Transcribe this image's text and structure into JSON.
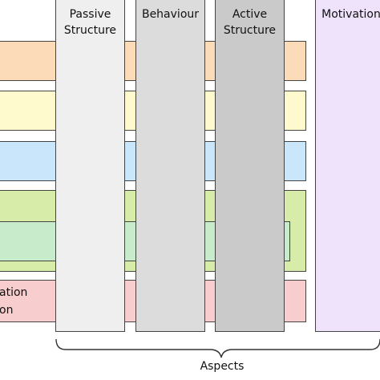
{
  "columns": [
    {
      "label": "Passive\nStructure",
      "color": "#efefef"
    },
    {
      "label": "Behaviour",
      "color": "#dcdcdc"
    },
    {
      "label": "Active\nStructure",
      "color": "#cacaca"
    },
    {
      "label": "Motivation",
      "color": "#efe3fb"
    }
  ],
  "layers": [
    {
      "label": "",
      "color": "#fcdcb8"
    },
    {
      "label": "",
      "color": "#fffacd"
    },
    {
      "label": "",
      "color": "#c9e6fa"
    },
    {
      "label": "",
      "color": "#d8ecaa"
    },
    {
      "label": "",
      "color": "#c8eccb"
    },
    {
      "label": "ation\non",
      "color": "#f7cdcd"
    }
  ],
  "aspects_label": "Aspects"
}
